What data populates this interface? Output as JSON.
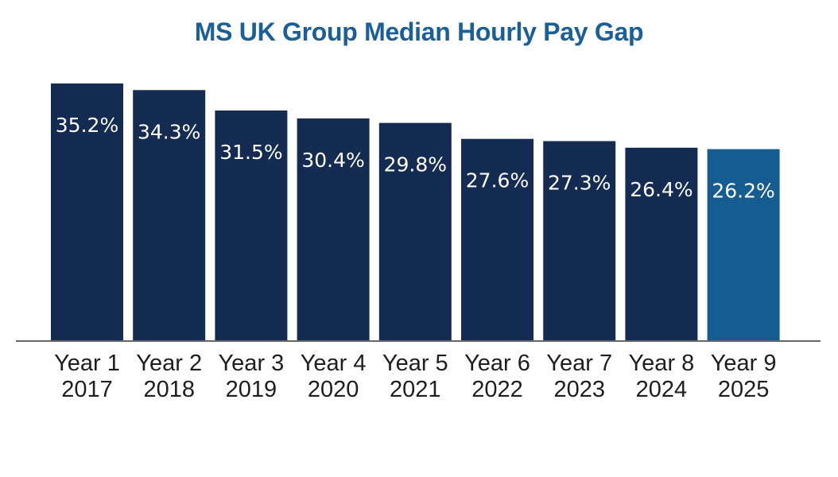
{
  "chart_data": {
    "type": "bar",
    "title": "MS UK Group Median Hourly Pay Gap",
    "categories": [
      [
        "Year 1",
        "2017"
      ],
      [
        "Year 2",
        "2018"
      ],
      [
        "Year 3",
        "2019"
      ],
      [
        "Year 4",
        "2020"
      ],
      [
        "Year 5",
        "2021"
      ],
      [
        "Year 6",
        "2022"
      ],
      [
        "Year 7",
        "2023"
      ],
      [
        "Year 8",
        "2024"
      ],
      [
        "Year 9",
        "2025"
      ]
    ],
    "values": [
      35.2,
      34.3,
      31.5,
      30.4,
      29.8,
      27.6,
      27.3,
      26.4,
      26.2
    ],
    "data_labels": [
      "35.2%",
      "34.3%",
      "31.5%",
      "30.4%",
      "29.8%",
      "27.6%",
      "27.3%",
      "26.4%",
      "26.2%"
    ],
    "unit": "%",
    "ylim": [
      0,
      35.2
    ],
    "grid": false,
    "legend": "none",
    "xlabel": "",
    "ylabel": "",
    "colors": {
      "bar": "#142b52",
      "highlight_bar": "#155d91",
      "title": "#1a5f98",
      "axis": "#333333",
      "label": "#ffffff",
      "tick": "#1e1e1e"
    },
    "highlight_index": 8
  }
}
